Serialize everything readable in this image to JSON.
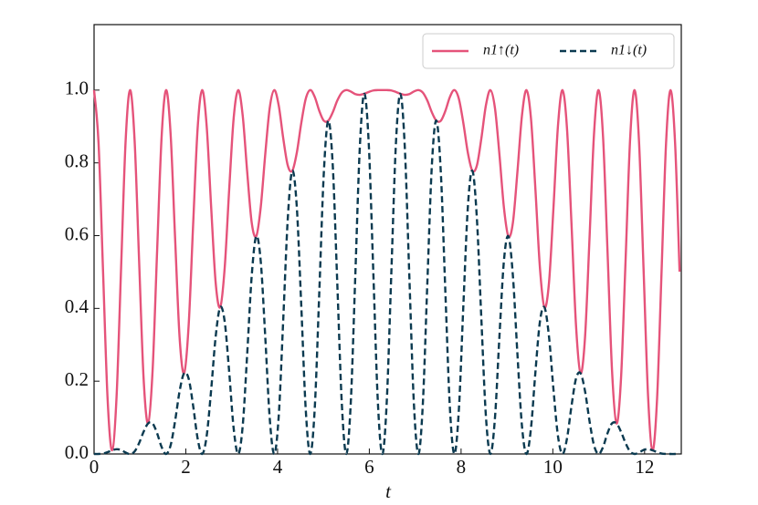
{
  "chart_data": {
    "type": "line",
    "x_label": "t",
    "xlim": [
      0,
      12.8
    ],
    "ylim": [
      0,
      1.18
    ],
    "xticks": [
      0,
      2,
      4,
      6,
      8,
      10,
      12
    ],
    "yticks": [
      {
        "value": 0,
        "label": "0.0"
      },
      {
        "value": 0.2,
        "label": "0.2"
      },
      {
        "value": 0.4,
        "label": "0.4"
      },
      {
        "value": 0.6,
        "label": "0.6"
      },
      {
        "value": 0.8,
        "label": "0.8"
      },
      {
        "value": 1.0,
        "label": "1.0"
      }
    ],
    "legend": "upper right",
    "x": [
      0,
      0.098,
      0.196,
      0.295,
      0.393,
      0.491,
      0.589,
      0.687,
      0.785,
      0.884,
      0.982,
      1.08,
      1.178,
      1.276,
      1.374,
      1.473,
      1.571,
      1.669,
      1.767,
      1.865,
      1.963,
      2.062,
      2.16,
      2.258,
      2.356,
      2.454,
      2.553,
      2.651,
      2.749,
      2.847,
      2.945,
      3.043,
      3.142,
      3.24,
      3.338,
      3.436,
      3.534,
      3.632,
      3.731,
      3.829,
      3.927,
      4.025,
      4.123,
      4.222,
      4.32,
      4.418,
      4.516,
      4.614,
      4.712,
      4.811,
      4.909,
      5.007,
      5.105,
      5.203,
      5.301,
      5.4,
      5.498,
      5.596,
      5.694,
      5.792,
      5.89,
      5.989,
      6.087,
      6.185,
      6.283,
      6.381,
      6.48,
      6.578,
      6.676,
      6.774,
      6.872,
      6.97,
      7.069,
      7.167,
      7.265,
      7.363,
      7.461,
      7.56,
      7.658,
      7.756,
      7.854,
      7.952,
      8.05,
      8.149,
      8.247,
      8.345,
      8.443,
      8.541,
      8.639,
      8.738,
      8.836,
      8.934,
      9.032,
      9.13,
      9.228,
      9.327,
      9.425,
      9.523,
      9.621,
      9.719,
      9.817,
      9.916,
      10.014,
      10.112,
      10.21,
      10.308,
      10.407,
      10.505,
      10.603,
      10.701,
      10.799,
      10.897,
      10.996,
      11.094,
      11.192,
      11.29,
      11.388,
      11.486,
      11.585,
      11.683,
      11.781,
      11.879,
      11.977,
      12.076,
      12.174,
      12.272,
      12.37,
      12.468,
      12.566,
      12.665,
      12.763
    ],
    "series": [
      {
        "name": "n1↑(t)",
        "color": "#e5537a",
        "dash": false,
        "values": [
          1,
          0.854,
          0.501,
          0.151,
          0.01,
          0.159,
          0.511,
          0.858,
          1,
          0.861,
          0.53,
          0.207,
          0.084,
          0.23,
          0.557,
          0.873,
          1,
          0.878,
          0.591,
          0.319,
          0.222,
          0.354,
          0.632,
          0.896,
          1,
          0.902,
          0.677,
          0.47,
          0.403,
          0.511,
          0.726,
          0.923,
          1,
          0.93,
          0.775,
          0.636,
          0.598,
          0.677,
          0.823,
          0.951,
          1,
          0.958,
          0.868,
          0.793,
          0.778,
          0.827,
          0.909,
          0.976,
          1,
          0.981,
          0.943,
          0.916,
          0.916,
          0.939,
          0.971,
          0.993,
          1,
          0.996,
          0.989,
          0.987,
          0.99,
          0.995,
          0.999,
          1,
          1,
          1,
          0.999,
          0.995,
          0.99,
          0.987,
          0.989,
          0.996,
          1,
          0.993,
          0.971,
          0.939,
          0.916,
          0.916,
          0.943,
          0.981,
          1,
          0.976,
          0.909,
          0.827,
          0.778,
          0.793,
          0.868,
          0.958,
          1,
          0.951,
          0.823,
          0.677,
          0.598,
          0.636,
          0.775,
          0.93,
          1,
          0.923,
          0.726,
          0.511,
          0.403,
          0.47,
          0.677,
          0.902,
          1,
          0.896,
          0.632,
          0.354,
          0.222,
          0.319,
          0.591,
          0.878,
          1,
          0.873,
          0.557,
          0.23,
          0.084,
          0.207,
          0.53,
          0.861,
          1,
          0.858,
          0.511,
          0.159,
          0.01,
          0.151,
          0.501,
          0.854,
          1,
          0.854,
          0.501
        ]
      },
      {
        "name": "n1↓(t)",
        "color": "#0b3a50",
        "dash": true,
        "values": [
          0,
          0,
          0.001,
          0.005,
          0.01,
          0.013,
          0.011,
          0.004,
          0,
          0.007,
          0.03,
          0.061,
          0.084,
          0.084,
          0.057,
          0.019,
          0,
          0.024,
          0.091,
          0.173,
          0.222,
          0.207,
          0.132,
          0.042,
          0,
          0.049,
          0.177,
          0.323,
          0.403,
          0.364,
          0.226,
          0.07,
          0,
          0.077,
          0.275,
          0.489,
          0.598,
          0.531,
          0.323,
          0.098,
          0,
          0.104,
          0.368,
          0.646,
          0.778,
          0.681,
          0.409,
          0.122,
          0,
          0.127,
          0.443,
          0.77,
          0.916,
          0.793,
          0.471,
          0.139,
          0,
          0.142,
          0.489,
          0.841,
          0.99,
          0.849,
          0.499,
          0.146,
          0,
          0.146,
          0.499,
          0.849,
          0.99,
          0.841,
          0.489,
          0.142,
          0,
          0.139,
          0.471,
          0.793,
          0.916,
          0.77,
          0.443,
          0.127,
          0,
          0.122,
          0.409,
          0.681,
          0.778,
          0.646,
          0.368,
          0.104,
          0,
          0.098,
          0.323,
          0.531,
          0.598,
          0.489,
          0.275,
          0.077,
          0,
          0.07,
          0.226,
          0.364,
          0.403,
          0.323,
          0.177,
          0.049,
          0,
          0.042,
          0.132,
          0.207,
          0.222,
          0.173,
          0.091,
          0.024,
          0,
          0.019,
          0.057,
          0.084,
          0.084,
          0.061,
          0.03,
          0.007,
          0,
          0.004,
          0.011,
          0.013,
          0.01,
          0.005,
          0.001,
          0,
          0,
          0,
          0.001
        ]
      }
    ]
  }
}
